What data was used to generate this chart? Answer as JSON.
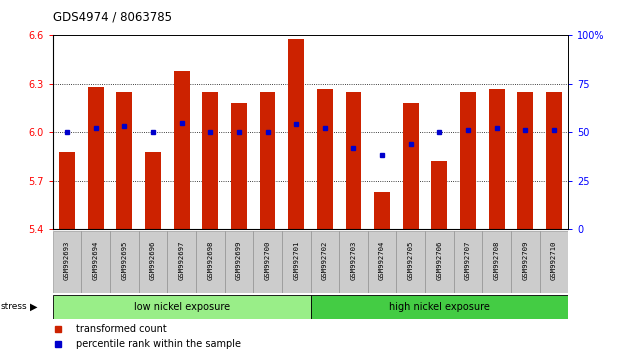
{
  "title": "GDS4974 / 8063785",
  "samples": [
    "GSM992693",
    "GSM992694",
    "GSM992695",
    "GSM992696",
    "GSM992697",
    "GSM992698",
    "GSM992699",
    "GSM992700",
    "GSM992701",
    "GSM992702",
    "GSM992703",
    "GSM992704",
    "GSM992705",
    "GSM992706",
    "GSM992707",
    "GSM992708",
    "GSM992709",
    "GSM992710"
  ],
  "transformed_counts": [
    5.88,
    6.28,
    6.25,
    5.88,
    6.38,
    6.25,
    6.18,
    6.25,
    6.58,
    6.27,
    6.25,
    5.63,
    6.18,
    5.82,
    6.25,
    6.27,
    6.25,
    6.25
  ],
  "percentile_ranks": [
    50,
    52,
    53,
    50,
    55,
    50,
    50,
    50,
    54,
    52,
    42,
    38,
    44,
    50,
    51,
    52,
    51,
    51
  ],
  "ylim_left": [
    5.4,
    6.6
  ],
  "ylim_right": [
    0,
    100
  ],
  "yticks_left": [
    5.4,
    5.7,
    6.0,
    6.3,
    6.6
  ],
  "yticks_right": [
    0,
    25,
    50,
    75,
    100
  ],
  "bar_color": "#cc2200",
  "dot_color": "#0000cc",
  "bar_bottom": 5.4,
  "group1_label": "low nickel exposure",
  "group2_label": "high nickel exposure",
  "group1_count": 9,
  "group1_color": "#99ee88",
  "group2_color": "#44cc44",
  "stress_label": "stress",
  "legend_red": "transformed count",
  "legend_blue": "percentile rank within the sample",
  "label_bg": "#cccccc",
  "bg_white": "#ffffff"
}
